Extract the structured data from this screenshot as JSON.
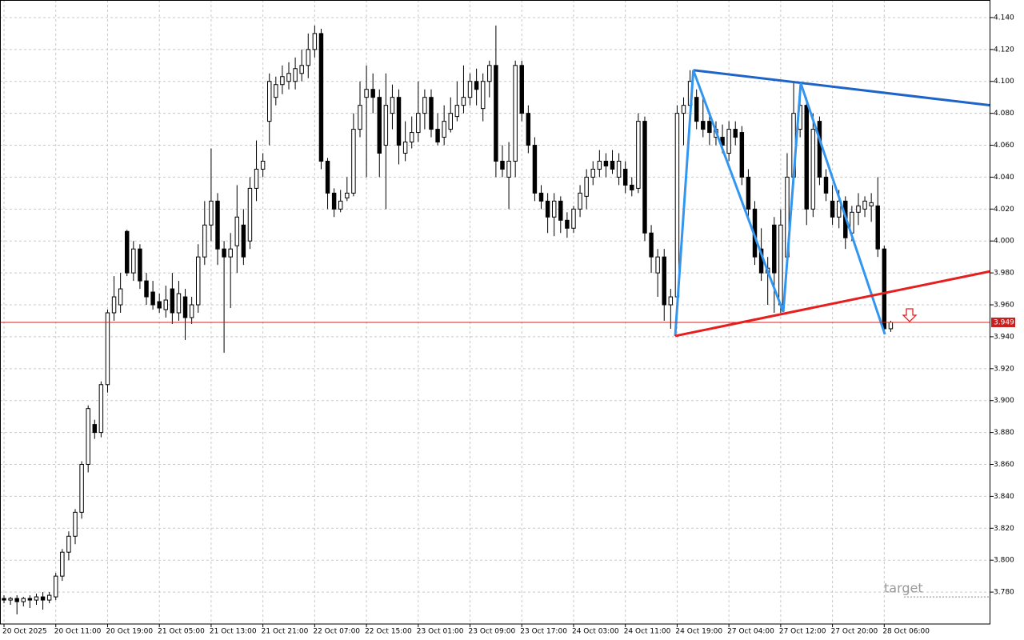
{
  "chart_data": {
    "type": "candlestick",
    "xlim": [
      -0.62,
      152.4
    ],
    "ylim": [
      3.76,
      4.151
    ],
    "grid": true,
    "bull_color": "#ffffff",
    "bear_color": "#000000",
    "yticks": [
      {
        "value": 3.78,
        "label": "3.780"
      },
      {
        "value": 3.8,
        "label": "3.800"
      },
      {
        "value": 3.82,
        "label": "3.820"
      },
      {
        "value": 3.84,
        "label": "3.840"
      },
      {
        "value": 3.86,
        "label": "3.860"
      },
      {
        "value": 3.88,
        "label": "3.880"
      },
      {
        "value": 3.9,
        "label": "3.900"
      },
      {
        "value": 3.92,
        "label": "3.920"
      },
      {
        "value": 3.94,
        "label": "3.940"
      },
      {
        "value": 3.96,
        "label": "3.960"
      },
      {
        "value": 3.98,
        "label": "3.980"
      },
      {
        "value": 4.0,
        "label": "4.000"
      },
      {
        "value": 4.02,
        "label": "4.020"
      },
      {
        "value": 4.04,
        "label": "4.040"
      },
      {
        "value": 4.06,
        "label": "4.060"
      },
      {
        "value": 4.08,
        "label": "4.080"
      },
      {
        "value": 4.1,
        "label": "4.100"
      },
      {
        "value": 4.12,
        "label": "4.120"
      },
      {
        "value": 4.14,
        "label": "4.140"
      }
    ],
    "xticks": [
      {
        "value": 0,
        "label": "20 Oct 2025"
      },
      {
        "value": 8,
        "label": "20 Oct 11:00"
      },
      {
        "value": 16,
        "label": "20 Oct 19:00"
      },
      {
        "value": 24,
        "label": "21 Oct 05:00"
      },
      {
        "value": 32,
        "label": "21 Oct 13:00"
      },
      {
        "value": 40,
        "label": "21 Oct 21:00"
      },
      {
        "value": 48,
        "label": "22 Oct 07:00"
      },
      {
        "value": 56,
        "label": "22 Oct 15:00"
      },
      {
        "value": 64,
        "label": "23 Oct 01:00"
      },
      {
        "value": 72,
        "label": "23 Oct 09:00"
      },
      {
        "value": 80,
        "label": "23 Oct 17:00"
      },
      {
        "value": 88,
        "label": "24 Oct 03:00"
      },
      {
        "value": 96,
        "label": "24 Oct 11:00"
      },
      {
        "value": 104,
        "label": "24 Oct 19:00"
      },
      {
        "value": 112,
        "label": "27 Oct 04:00"
      },
      {
        "value": 120,
        "label": "27 Oct 12:00"
      },
      {
        "value": 128,
        "label": "27 Oct 20:00"
      },
      {
        "value": 136,
        "label": "28 Oct 06:00"
      }
    ],
    "candles": [
      [
        3.776,
        3.778,
        3.773,
        3.775
      ],
      [
        3.775,
        3.777,
        3.772,
        3.776
      ],
      [
        3.776,
        3.778,
        3.766,
        3.774
      ],
      [
        3.774,
        3.777,
        3.771,
        3.776
      ],
      [
        3.776,
        3.778,
        3.77,
        3.775
      ],
      [
        3.775,
        3.779,
        3.772,
        3.777
      ],
      [
        3.777,
        3.78,
        3.769,
        3.775
      ],
      [
        3.775,
        3.78,
        3.773,
        3.778
      ],
      [
        3.777,
        3.792,
        3.775,
        3.79
      ],
      [
        3.79,
        3.807,
        3.787,
        3.805
      ],
      [
        3.805,
        3.818,
        3.8,
        3.815
      ],
      [
        3.815,
        3.832,
        3.81,
        3.83
      ],
      [
        3.83,
        3.862,
        3.826,
        3.86
      ],
      [
        3.86,
        3.897,
        3.855,
        3.895
      ],
      [
        3.885,
        3.888,
        3.876,
        3.88
      ],
      [
        3.88,
        3.912,
        3.877,
        3.91
      ],
      [
        3.91,
        3.957,
        3.905,
        3.955
      ],
      [
        3.955,
        3.978,
        3.95,
        3.965
      ],
      [
        3.96,
        3.98,
        3.955,
        3.97
      ],
      [
        4.006,
        4.007,
        3.978,
        3.98
      ],
      [
        3.98,
        4.0,
        3.975,
        3.995
      ],
      [
        3.995,
        3.998,
        3.97,
        3.975
      ],
      [
        3.975,
        3.98,
        3.96,
        3.965
      ],
      [
        3.968,
        3.975,
        3.957,
        3.96
      ],
      [
        3.962,
        3.967,
        3.955,
        3.958
      ],
      [
        3.957,
        3.972,
        3.952,
        3.963
      ],
      [
        3.97,
        3.98,
        3.948,
        3.955
      ],
      [
        3.955,
        3.975,
        3.95,
        3.967
      ],
      [
        3.965,
        3.97,
        3.938,
        3.952
      ],
      [
        3.952,
        3.965,
        3.948,
        3.96
      ],
      [
        3.96,
        3.998,
        3.955,
        3.99
      ],
      [
        3.99,
        4.025,
        3.985,
        4.01
      ],
      [
        4.01,
        4.058,
        4.0,
        4.025
      ],
      [
        4.025,
        4.03,
        3.985,
        3.995
      ],
      [
        3.995,
        4.0,
        3.93,
        3.99
      ],
      [
        3.99,
        4.005,
        3.958,
        3.995
      ],
      [
        3.997,
        4.035,
        3.98,
        4.015
      ],
      [
        4.01,
        4.02,
        3.985,
        3.99
      ],
      [
        4.0,
        4.04,
        3.995,
        4.033
      ],
      [
        4.033,
        4.063,
        4.025,
        4.045
      ],
      [
        4.045,
        4.055,
        4.04,
        4.05
      ],
      [
        4.075,
        4.105,
        4.06,
        4.1
      ],
      [
        4.09,
        4.103,
        4.085,
        4.098
      ],
      [
        4.098,
        4.11,
        4.092,
        4.103
      ],
      [
        4.1,
        4.112,
        4.095,
        4.105
      ],
      [
        4.1,
        4.115,
        4.095,
        4.108
      ],
      [
        4.105,
        4.12,
        4.1,
        4.11
      ],
      [
        4.11,
        4.13,
        4.102,
        4.12
      ],
      [
        4.12,
        4.135,
        4.115,
        4.13
      ],
      [
        4.13,
        4.133,
        4.045,
        4.05
      ],
      [
        4.05,
        4.052,
        4.02,
        4.03
      ],
      [
        4.03,
        4.033,
        4.015,
        4.02
      ],
      [
        4.02,
        4.032,
        4.018,
        4.025
      ],
      [
        4.027,
        4.04,
        4.025,
        4.03
      ],
      [
        4.03,
        4.08,
        4.028,
        4.07
      ],
      [
        4.07,
        4.1,
        4.065,
        4.085
      ],
      [
        4.09,
        4.11,
        4.04,
        4.095
      ],
      [
        4.095,
        4.105,
        4.08,
        4.09
      ],
      [
        4.09,
        4.095,
        4.04,
        4.055
      ],
      [
        4.06,
        4.105,
        4.02,
        4.085
      ],
      [
        4.08,
        4.098,
        4.07,
        4.09
      ],
      [
        4.09,
        4.095,
        4.048,
        4.06
      ],
      [
        4.055,
        4.075,
        4.05,
        4.062
      ],
      [
        4.062,
        4.078,
        4.058,
        4.068
      ],
      [
        4.068,
        4.1,
        4.062,
        4.08
      ],
      [
        4.08,
        4.095,
        4.07,
        4.09
      ],
      [
        4.09,
        4.095,
        4.065,
        4.07
      ],
      [
        4.07,
        4.08,
        4.06,
        4.062
      ],
      [
        4.065,
        4.085,
        4.06,
        4.075
      ],
      [
        4.07,
        4.09,
        4.068,
        4.08
      ],
      [
        4.078,
        4.1,
        4.075,
        4.085
      ],
      [
        4.085,
        4.11,
        4.08,
        4.09
      ],
      [
        4.09,
        4.105,
        4.085,
        4.1
      ],
      [
        4.1,
        4.108,
        4.085,
        4.095
      ],
      [
        4.083,
        4.105,
        4.075,
        4.1
      ],
      [
        4.1,
        4.113,
        4.09,
        4.11
      ],
      [
        4.11,
        4.135,
        4.04,
        4.05
      ],
      [
        4.05,
        4.06,
        4.04,
        4.045
      ],
      [
        4.04,
        4.062,
        4.02,
        4.05
      ],
      [
        4.05,
        4.113,
        4.04,
        4.11
      ],
      [
        4.11,
        4.113,
        4.075,
        4.08
      ],
      [
        4.08,
        4.085,
        4.055,
        4.06
      ],
      [
        4.06,
        4.065,
        4.025,
        4.03
      ],
      [
        4.03,
        4.035,
        4.02,
        4.025
      ],
      [
        4.025,
        4.03,
        4.005,
        4.015
      ],
      [
        4.015,
        4.03,
        4.003,
        4.025
      ],
      [
        4.025,
        4.028,
        4.005,
        4.013
      ],
      [
        4.013,
        4.018,
        4.002,
        4.008
      ],
      [
        4.008,
        4.022,
        4.005,
        4.02
      ],
      [
        4.02,
        4.035,
        4.015,
        4.03
      ],
      [
        4.028,
        4.045,
        4.02,
        4.04
      ],
      [
        4.04,
        4.05,
        4.035,
        4.045
      ],
      [
        4.045,
        4.057,
        4.04,
        4.05
      ],
      [
        4.05,
        4.055,
        4.04,
        4.047
      ],
      [
        4.05,
        4.057,
        4.042,
        4.045
      ],
      [
        4.04,
        4.055,
        4.035,
        4.05
      ],
      [
        4.045,
        4.05,
        4.03,
        4.035
      ],
      [
        4.035,
        4.04,
        4.028,
        4.032
      ],
      [
        4.033,
        4.08,
        4.03,
        4.075
      ],
      [
        4.075,
        4.078,
        4.0,
        4.005
      ],
      [
        4.005,
        4.01,
        3.98,
        3.99
      ],
      [
        3.98,
        3.995,
        3.965,
        3.99
      ],
      [
        3.99,
        3.995,
        3.95,
        3.96
      ],
      [
        3.96,
        3.97,
        3.945,
        3.965
      ],
      [
        3.965,
        4.085,
        3.96,
        4.08
      ],
      [
        4.08,
        4.09,
        4.06,
        4.085
      ],
      [
        4.085,
        4.107,
        4.08,
        4.1
      ],
      [
        4.09,
        4.095,
        4.07,
        4.075
      ],
      [
        4.075,
        4.09,
        4.065,
        4.07
      ],
      [
        4.075,
        4.08,
        4.06,
        4.068
      ],
      [
        4.065,
        4.075,
        4.06,
        4.07
      ],
      [
        4.065,
        4.073,
        4.055,
        4.06
      ],
      [
        4.055,
        4.075,
        4.05,
        4.07
      ],
      [
        4.07,
        4.075,
        4.06,
        4.065
      ],
      [
        4.068,
        4.072,
        4.035,
        4.04
      ],
      [
        4.04,
        4.045,
        4.015,
        4.02
      ],
      [
        4.02,
        4.025,
        3.985,
        3.99
      ],
      [
        3.995,
        4.008,
        3.975,
        3.98
      ],
      [
        3.98,
        3.99,
        3.96,
        3.983
      ],
      [
        4.01,
        4.015,
        3.955,
        3.98
      ],
      [
        3.96,
        4.02,
        3.955,
        4.01
      ],
      [
        3.99,
        4.055,
        3.985,
        4.04
      ],
      [
        4.04,
        4.1,
        4.035,
        4.08
      ],
      [
        4.07,
        4.095,
        4.065,
        4.085
      ],
      [
        4.085,
        4.09,
        4.01,
        4.02
      ],
      [
        4.02,
        4.08,
        4.015,
        4.07
      ],
      [
        4.075,
        4.078,
        4.035,
        4.04
      ],
      [
        4.04,
        4.045,
        4.025,
        4.03
      ],
      [
        4.025,
        4.035,
        4.01,
        4.015
      ],
      [
        4.015,
        4.032,
        4.008,
        4.025
      ],
      [
        4.025,
        4.028,
        3.995,
        4.002
      ],
      [
        4.005,
        4.022,
        4.0,
        4.018
      ],
      [
        4.018,
        4.03,
        4.01,
        4.022
      ],
      [
        4.02,
        4.028,
        4.015,
        4.025
      ],
      [
        4.022,
        4.03,
        4.012,
        4.024
      ],
      [
        4.022,
        4.04,
        3.99,
        3.995
      ],
      [
        3.995,
        3.997,
        3.942,
        3.945
      ],
      [
        3.945,
        3.95,
        3.943,
        3.949
      ]
    ],
    "trendlines": [
      {
        "color": "#1e64c8",
        "x": [
          106.5,
          152.4
        ],
        "y": [
          4.107,
          4.085
        ]
      },
      {
        "color": "#3296f0",
        "x": [
          103.7,
          106.5,
          118.0,
          120.4,
          123.1,
          136.1
        ],
        "y": [
          3.9405,
          4.107,
          3.981,
          3.9556,
          4.0989,
          3.9415
        ]
      },
      {
        "color": "#e61e1e",
        "x": [
          103.7,
          152.4
        ],
        "y": [
          3.9405,
          3.981
        ]
      }
    ],
    "current_price": 3.949,
    "target": {
      "label": "target",
      "value": 3.777
    }
  }
}
